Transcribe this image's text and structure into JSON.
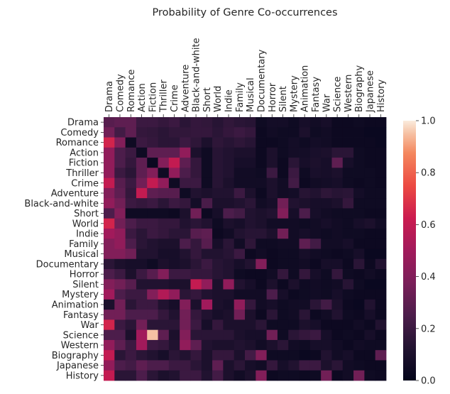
{
  "chart_data": {
    "type": "heatmap",
    "title": "Probability of Genre Co-occurrences",
    "xlabel": "",
    "ylabel": "",
    "labels": [
      "Drama",
      "Comedy",
      "Romance",
      "Action",
      "Fiction",
      "Thriller",
      "Crime",
      "Adventure",
      "Black-and-white",
      "Short",
      "World",
      "Indie",
      "Family",
      "Musical",
      "Documentary",
      "Horror",
      "Silent",
      "Mystery",
      "Animation",
      "Fantasy",
      "War",
      "Science",
      "Western",
      "Biography",
      "Japanese",
      "History"
    ],
    "x_tick_position": "top",
    "colormap": "rocket",
    "colorbar": {
      "min": 0.0,
      "max": 1.0,
      "ticks": [
        "0.0",
        "0.2",
        "0.4",
        "0.6",
        "0.8",
        "1.0"
      ]
    },
    "matrix": [
      [
        0.28,
        0.3,
        0.3,
        0.2,
        0.2,
        0.18,
        0.2,
        0.15,
        0.18,
        0.17,
        0.14,
        0.17,
        0.15,
        0.14,
        0.05,
        0.07,
        0.07,
        0.05,
        0.08,
        0.06,
        0.08,
        0.04,
        0.04,
        0.05,
        0.04,
        0.04
      ],
      [
        0.35,
        0.22,
        0.3,
        0.18,
        0.17,
        0.15,
        0.17,
        0.17,
        0.18,
        0.18,
        0.15,
        0.18,
        0.2,
        0.18,
        0.04,
        0.06,
        0.05,
        0.05,
        0.1,
        0.05,
        0.06,
        0.04,
        0.04,
        0.04,
        0.03,
        0.03
      ],
      [
        0.65,
        0.4,
        0.05,
        0.2,
        0.18,
        0.15,
        0.15,
        0.2,
        0.16,
        0.1,
        0.16,
        0.14,
        0.16,
        0.14,
        0.04,
        0.04,
        0.05,
        0.07,
        0.05,
        0.07,
        0.06,
        0.04,
        0.04,
        0.04,
        0.04,
        0.03
      ],
      [
        0.45,
        0.25,
        0.2,
        0.05,
        0.3,
        0.3,
        0.3,
        0.45,
        0.1,
        0.05,
        0.14,
        0.12,
        0.1,
        0.1,
        0.04,
        0.1,
        0.05,
        0.07,
        0.07,
        0.09,
        0.1,
        0.15,
        0.15,
        0.05,
        0.04,
        0.04
      ],
      [
        0.45,
        0.25,
        0.18,
        0.3,
        0.03,
        0.4,
        0.6,
        0.3,
        0.18,
        0.05,
        0.14,
        0.12,
        0.08,
        0.08,
        0.04,
        0.1,
        0.04,
        0.15,
        0.08,
        0.1,
        0.08,
        0.3,
        0.08,
        0.05,
        0.04,
        0.04
      ],
      [
        0.45,
        0.2,
        0.15,
        0.3,
        0.4,
        0.05,
        0.45,
        0.25,
        0.18,
        0.05,
        0.14,
        0.12,
        0.06,
        0.06,
        0.05,
        0.2,
        0.04,
        0.2,
        0.05,
        0.09,
        0.08,
        0.1,
        0.05,
        0.05,
        0.05,
        0.04
      ],
      [
        0.6,
        0.28,
        0.2,
        0.35,
        0.6,
        0.45,
        0.05,
        0.2,
        0.2,
        0.05,
        0.14,
        0.1,
        0.06,
        0.06,
        0.06,
        0.1,
        0.06,
        0.22,
        0.04,
        0.06,
        0.07,
        0.08,
        0.05,
        0.04,
        0.05,
        0.04
      ],
      [
        0.4,
        0.3,
        0.18,
        0.6,
        0.3,
        0.28,
        0.28,
        0.05,
        0.12,
        0.1,
        0.12,
        0.12,
        0.2,
        0.1,
        0.04,
        0.1,
        0.06,
        0.07,
        0.14,
        0.12,
        0.16,
        0.14,
        0.15,
        0.07,
        0.05,
        0.05
      ],
      [
        0.45,
        0.35,
        0.2,
        0.18,
        0.2,
        0.15,
        0.2,
        0.18,
        0.07,
        0.24,
        0.1,
        0.1,
        0.12,
        0.15,
        0.06,
        0.08,
        0.35,
        0.12,
        0.1,
        0.08,
        0.08,
        0.1,
        0.18,
        0.05,
        0.05,
        0.05
      ],
      [
        0.25,
        0.4,
        0.05,
        0.05,
        0.05,
        0.05,
        0.04,
        0.1,
        0.35,
        0.04,
        0.08,
        0.25,
        0.22,
        0.12,
        0.1,
        0.12,
        0.4,
        0.08,
        0.25,
        0.08,
        0.06,
        0.05,
        0.05,
        0.05,
        0.04,
        0.04
      ],
      [
        0.65,
        0.35,
        0.25,
        0.2,
        0.2,
        0.18,
        0.18,
        0.12,
        0.15,
        0.12,
        0.05,
        0.1,
        0.08,
        0.12,
        0.1,
        0.06,
        0.06,
        0.06,
        0.05,
        0.06,
        0.08,
        0.06,
        0.05,
        0.08,
        0.1,
        0.06
      ],
      [
        0.5,
        0.45,
        0.2,
        0.15,
        0.2,
        0.18,
        0.15,
        0.15,
        0.28,
        0.3,
        0.04,
        0.06,
        0.12,
        0.14,
        0.14,
        0.1,
        0.35,
        0.06,
        0.08,
        0.06,
        0.05,
        0.06,
        0.05,
        0.05,
        0.04,
        0.04
      ],
      [
        0.4,
        0.45,
        0.25,
        0.15,
        0.12,
        0.1,
        0.1,
        0.25,
        0.18,
        0.28,
        0.08,
        0.15,
        0.06,
        0.16,
        0.05,
        0.05,
        0.06,
        0.06,
        0.3,
        0.22,
        0.06,
        0.06,
        0.08,
        0.04,
        0.04,
        0.04
      ],
      [
        0.4,
        0.4,
        0.35,
        0.12,
        0.12,
        0.08,
        0.08,
        0.12,
        0.18,
        0.12,
        0.12,
        0.14,
        0.2,
        0.04,
        0.06,
        0.04,
        0.05,
        0.05,
        0.08,
        0.06,
        0.05,
        0.04,
        0.05,
        0.08,
        0.03,
        0.03
      ],
      [
        0.15,
        0.1,
        0.08,
        0.08,
        0.05,
        0.1,
        0.08,
        0.1,
        0.15,
        0.2,
        0.14,
        0.12,
        0.08,
        0.12,
        0.4,
        0.04,
        0.05,
        0.05,
        0.06,
        0.04,
        0.08,
        0.08,
        0.04,
        0.15,
        0.04,
        0.12
      ],
      [
        0.25,
        0.2,
        0.1,
        0.2,
        0.28,
        0.4,
        0.2,
        0.2,
        0.18,
        0.18,
        0.14,
        0.12,
        0.05,
        0.04,
        0.04,
        0.06,
        0.18,
        0.05,
        0.18,
        0.08,
        0.05,
        0.18,
        0.05,
        0.04,
        0.06,
        0.04
      ],
      [
        0.4,
        0.35,
        0.28,
        0.12,
        0.12,
        0.12,
        0.1,
        0.1,
        0.6,
        0.45,
        0.1,
        0.45,
        0.12,
        0.08,
        0.04,
        0.1,
        0.04,
        0.1,
        0.05,
        0.06,
        0.05,
        0.06,
        0.14,
        0.05,
        0.03,
        0.03
      ],
      [
        0.5,
        0.25,
        0.2,
        0.2,
        0.4,
        0.55,
        0.45,
        0.15,
        0.18,
        0.12,
        0.1,
        0.1,
        0.06,
        0.06,
        0.06,
        0.25,
        0.08,
        0.04,
        0.05,
        0.06,
        0.05,
        0.08,
        0.05,
        0.04,
        0.04,
        0.04
      ],
      [
        0.1,
        0.35,
        0.15,
        0.2,
        0.2,
        0.12,
        0.08,
        0.4,
        0.1,
        0.5,
        0.1,
        0.08,
        0.45,
        0.18,
        0.06,
        0.08,
        0.05,
        0.06,
        0.06,
        0.15,
        0.22,
        0.1,
        0.04,
        0.03,
        0.12,
        0.04
      ],
      [
        0.35,
        0.35,
        0.25,
        0.25,
        0.25,
        0.18,
        0.12,
        0.35,
        0.18,
        0.12,
        0.08,
        0.1,
        0.35,
        0.1,
        0.04,
        0.15,
        0.05,
        0.06,
        0.15,
        0.04,
        0.06,
        0.12,
        0.05,
        0.04,
        0.08,
        0.04
      ],
      [
        0.65,
        0.2,
        0.15,
        0.35,
        0.15,
        0.15,
        0.15,
        0.35,
        0.2,
        0.08,
        0.18,
        0.1,
        0.1,
        0.1,
        0.15,
        0.05,
        0.05,
        0.05,
        0.1,
        0.08,
        0.04,
        0.04,
        0.04,
        0.06,
        0.04,
        0.12
      ],
      [
        0.25,
        0.25,
        0.1,
        0.5,
        0.95,
        0.3,
        0.1,
        0.4,
        0.15,
        0.15,
        0.15,
        0.15,
        0.1,
        0.08,
        0.08,
        0.35,
        0.05,
        0.15,
        0.18,
        0.2,
        0.08,
        0.04,
        0.05,
        0.04,
        0.08,
        0.04
      ],
      [
        0.45,
        0.3,
        0.2,
        0.5,
        0.2,
        0.18,
        0.12,
        0.45,
        0.3,
        0.12,
        0.1,
        0.1,
        0.12,
        0.1,
        0.06,
        0.1,
        0.15,
        0.06,
        0.05,
        0.08,
        0.08,
        0.06,
        0.04,
        0.06,
        0.05,
        0.05
      ],
      [
        0.6,
        0.15,
        0.2,
        0.15,
        0.12,
        0.08,
        0.15,
        0.12,
        0.18,
        0.1,
        0.18,
        0.18,
        0.1,
        0.22,
        0.4,
        0.05,
        0.05,
        0.05,
        0.03,
        0.04,
        0.12,
        0.06,
        0.08,
        0.04,
        0.04,
        0.3
      ],
      [
        0.45,
        0.25,
        0.22,
        0.3,
        0.25,
        0.25,
        0.2,
        0.2,
        0.15,
        0.1,
        0.3,
        0.1,
        0.15,
        0.08,
        0.06,
        0.18,
        0.08,
        0.12,
        0.2,
        0.2,
        0.1,
        0.15,
        0.06,
        0.05,
        0.04,
        0.04
      ],
      [
        0.6,
        0.15,
        0.15,
        0.25,
        0.15,
        0.1,
        0.12,
        0.2,
        0.2,
        0.12,
        0.22,
        0.1,
        0.06,
        0.1,
        0.4,
        0.04,
        0.05,
        0.05,
        0.04,
        0.05,
        0.35,
        0.04,
        0.06,
        0.35,
        0.05,
        0.04
      ]
    ]
  }
}
